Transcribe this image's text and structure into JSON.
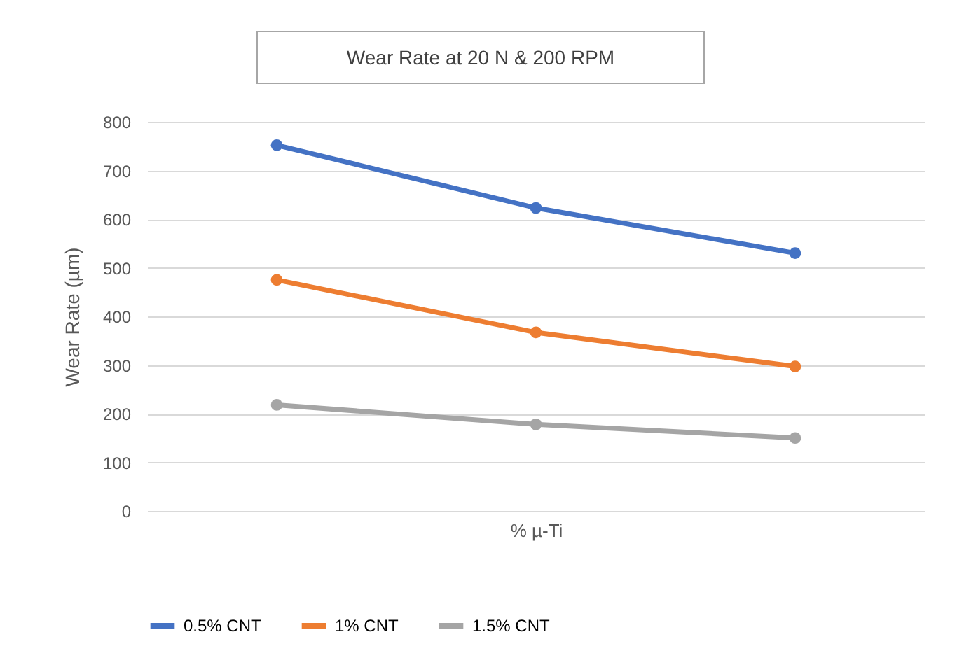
{
  "chart_data": {
    "type": "line",
    "title": "Wear Rate at 20 N & 200 RPM",
    "xlabel": "% µ-Ti",
    "ylabel": "Wear Rate (µm)",
    "categories": [
      null,
      null,
      null
    ],
    "series": [
      {
        "name": "0.5% CNT",
        "color": "#4472c4",
        "values": [
          752,
          623,
          530
        ]
      },
      {
        "name": "1% CNT",
        "color": "#ed7d31",
        "values": [
          475,
          367,
          297
        ]
      },
      {
        "name": "1.5% CNT",
        "color": "#a5a5a5",
        "values": [
          218,
          178,
          150
        ]
      }
    ],
    "ylim": [
      0,
      800
    ],
    "yticks": [
      0,
      100,
      200,
      300,
      400,
      500,
      600,
      700,
      800
    ],
    "grid": "y",
    "legend": "bottom",
    "marker": "circle",
    "line_style": "solid"
  }
}
